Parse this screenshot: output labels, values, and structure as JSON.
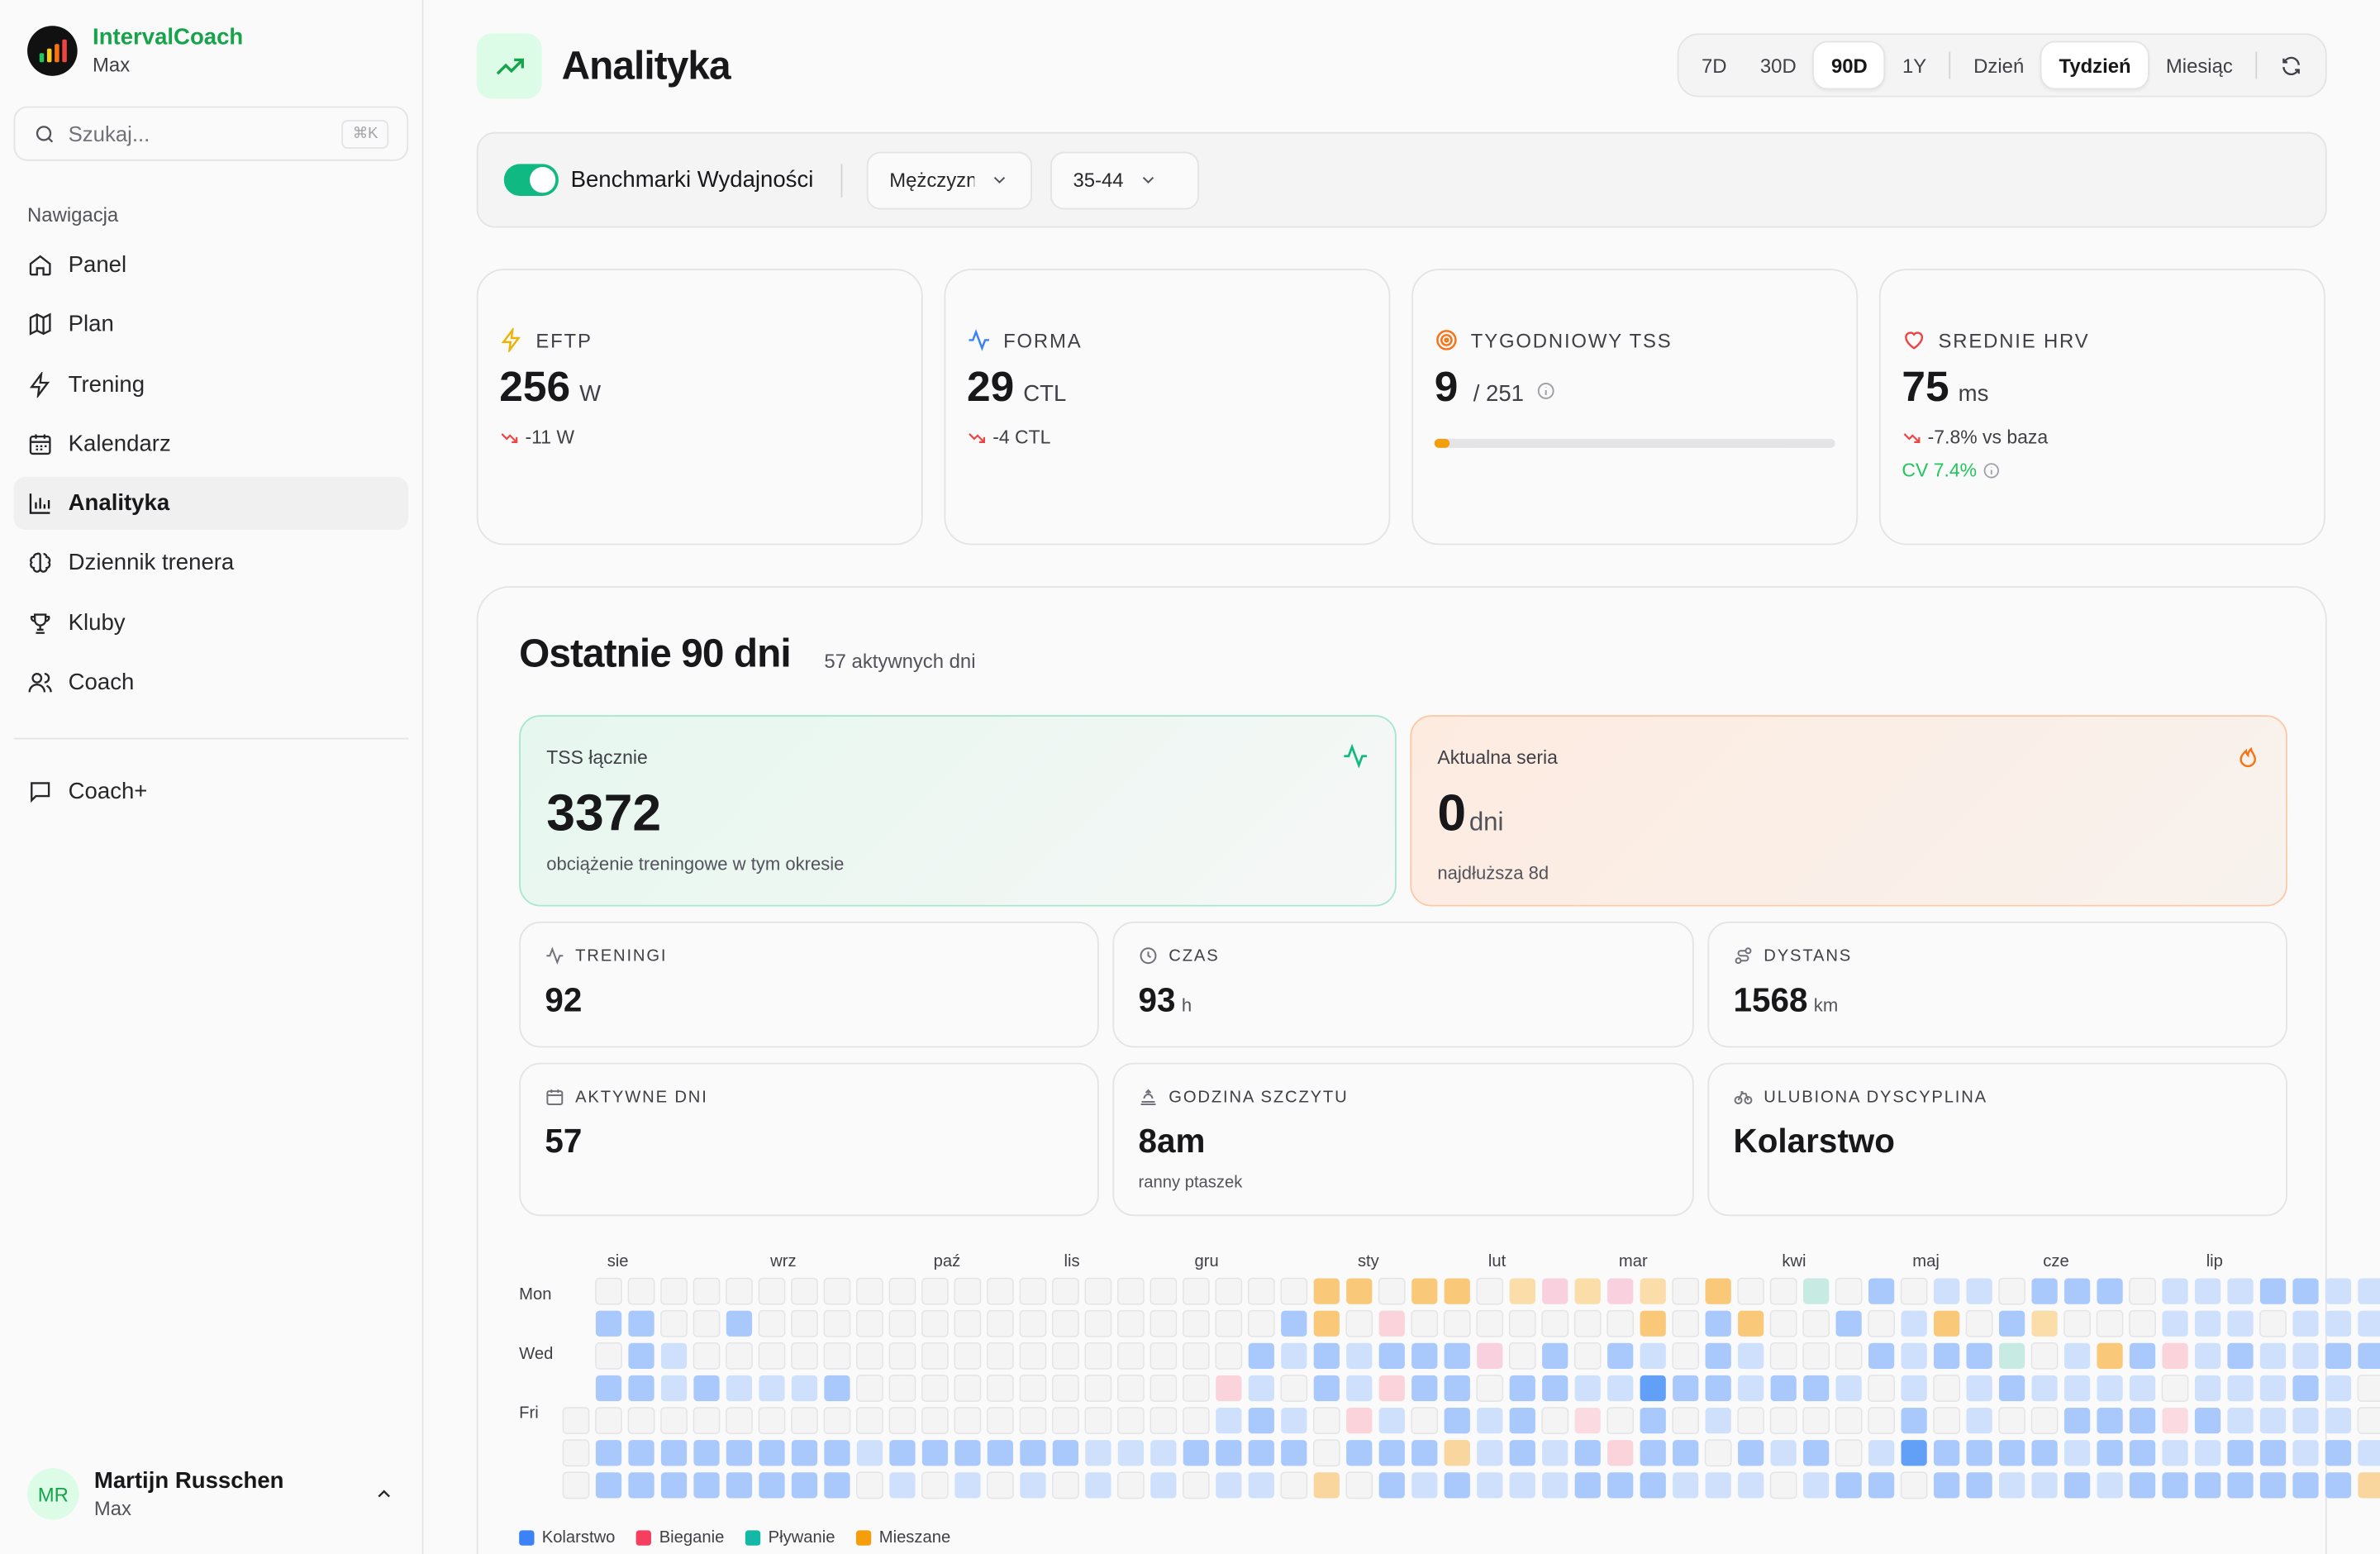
{
  "app": {
    "name": "IntervalCoach",
    "subtitle": "Max",
    "colors": {
      "brand": "#16a34a",
      "accent": "#10b981"
    }
  },
  "search": {
    "placeholder": "Szukaj...",
    "shortcut": "⌘K"
  },
  "nav": {
    "title": "Nawigacja",
    "items": [
      {
        "label": "Panel",
        "icon": "home-icon"
      },
      {
        "label": "Plan",
        "icon": "map-icon"
      },
      {
        "label": "Trening",
        "icon": "zap-icon"
      },
      {
        "label": "Kalendarz",
        "icon": "calendar-icon"
      },
      {
        "label": "Analityka",
        "icon": "bar-chart-icon",
        "active": true
      },
      {
        "label": "Dziennik trenera",
        "icon": "brain-icon"
      },
      {
        "label": "Kluby",
        "icon": "trophy-icon"
      },
      {
        "label": "Coach",
        "icon": "users-icon"
      }
    ],
    "extra": {
      "label": "Coach+",
      "icon": "message-icon"
    }
  },
  "user": {
    "initials": "MR",
    "name": "Martijn Russchen",
    "subtitle": "Max"
  },
  "header": {
    "title": "Analityka",
    "ranges": [
      "7D",
      "30D",
      "90D",
      "1Y"
    ],
    "selected_range": "90D",
    "groupings": [
      "Dzień",
      "Tydzień",
      "Miesiąc"
    ],
    "selected_grouping": "Tydzień"
  },
  "benchmark": {
    "label": "Benchmarki Wydajności",
    "enabled": true,
    "gender": "Mężczyzna",
    "age": "35-44"
  },
  "kpis": {
    "eftp": {
      "label": "EFTP",
      "value": "256",
      "unit": "W",
      "delta": "-11 W"
    },
    "forma": {
      "label": "FORMA",
      "value": "29",
      "unit": "CTL",
      "delta": "-4 CTL"
    },
    "tss": {
      "label": "TYGODNIOWY TSS",
      "value": "9",
      "target": "/ 251",
      "progress": 0.036
    },
    "hrv": {
      "label": "SREDNIE HRV",
      "value": "75",
      "unit": "ms",
      "delta": "-7.8% vs baza",
      "cv": "CV 7.4%"
    }
  },
  "period": {
    "title": "Ostatnie 90 dni",
    "subtitle": "57 aktywnych dni",
    "tss_total": {
      "label": "TSS łącznie",
      "value": "3372",
      "note": "obciążenie treningowe w tym okresie"
    },
    "streak": {
      "label": "Aktualna seria",
      "value": "0",
      "unit": "dni",
      "note": "najdłuższa 8d"
    },
    "stats": {
      "treningi": {
        "label": "TRENINGI",
        "value": "92"
      },
      "czas": {
        "label": "CZAS",
        "value": "93",
        "unit": "h"
      },
      "dystans": {
        "label": "DYSTANS",
        "value": "1568",
        "unit": "km"
      },
      "aktywne": {
        "label": "AKTYWNE DNI",
        "value": "57"
      },
      "godzina": {
        "label": "GODZINA SZCZYTU",
        "value": "8am",
        "note": "ranny ptaszek"
      },
      "dyscyplina": {
        "label": "ULUBIONA DYSCYPLINA",
        "value": "Kolarstwo"
      }
    }
  },
  "heatmap": {
    "months": [
      "sie",
      "wrz",
      "paź",
      "lis",
      "gru",
      "sty",
      "lut",
      "mar",
      "kwi",
      "maj",
      "cze",
      "lip"
    ],
    "day_labels": [
      "Mon",
      "Wed",
      "Fri"
    ],
    "legend": [
      {
        "label": "Kolarstwo",
        "color": "#3b82f6"
      },
      {
        "label": "Bieganie",
        "color": "#f43f5e"
      },
      {
        "label": "Pływanie",
        "color": "#14b8a6"
      },
      {
        "label": "Mieszane",
        "color": "#f59e0b"
      }
    ],
    "grid": [
      "-0000000000000000000000oo0oo0pqpqp0o00e0b0cc0bbb0cccbbcccc0c",
      "-bb00b0000000000000000bo0r0000000o0bo00b0co0bp000ccc0ccccb0c",
      "-0bc00000000000000000bcbcbbbq0b0bc0bc000bcbbe0cobrcbccbbccfc",
      "-bbcbcccb00000000000rc0bcrbb0bbccdbbcbbc0c0cbcccc0cccbc0bb0c",
      "00000000000000000000cbc0rc0bcb0n0b0c00000b0c00bbbnbcccc00cd0",
      "0bbbbbbbbcbbbbbbcccbbbb0bbbhcbcbrbb0bcb0cdbbbbcbbccbbcbcchcb",
      "0bbbbbbbb0c0c0c0c0c0cc0h0bcbcccbbbccc0cbb0bbccbcbbbbbbbhbbcb"
    ]
  }
}
